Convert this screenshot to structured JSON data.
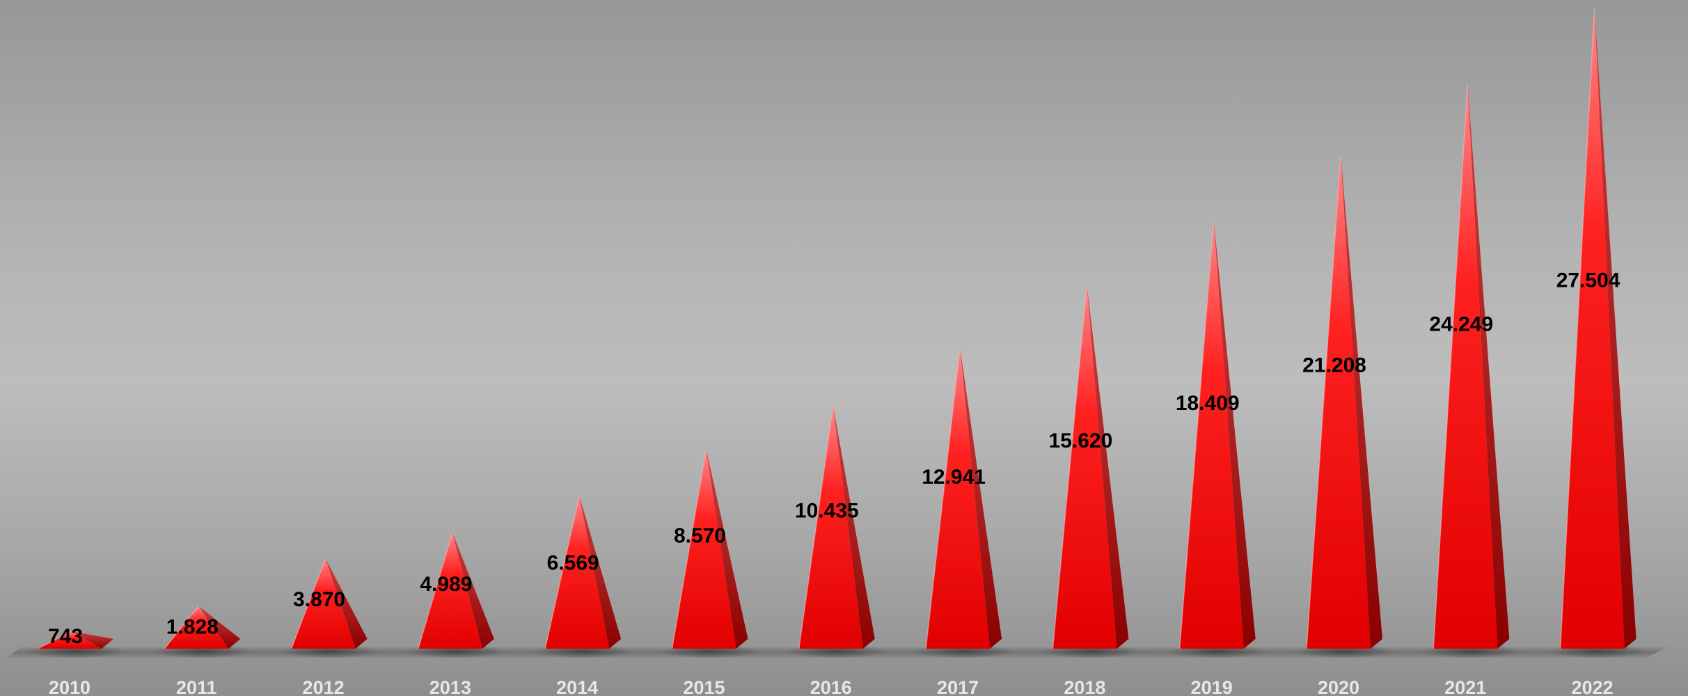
{
  "chart_data": {
    "type": "bar",
    "mark_shape": "3d-pyramid",
    "categories": [
      "2010",
      "2011",
      "2012",
      "2013",
      "2014",
      "2015",
      "2016",
      "2017",
      "2018",
      "2019",
      "2020",
      "2021",
      "2022"
    ],
    "values": [
      743,
      1828,
      3870,
      4989,
      6569,
      8570,
      10435,
      12941,
      15620,
      18409,
      21208,
      24249,
      27504
    ],
    "data_labels": [
      "743",
      "1.828",
      "3.870",
      "4.989",
      "6.569",
      "8.570",
      "10.435",
      "12.941",
      "15.620",
      "18.409",
      "21.208",
      "24.249",
      "27.504"
    ],
    "title": "",
    "xlabel": "",
    "ylabel": "",
    "ylim": [
      0,
      27504
    ],
    "grid": false,
    "legend": "none",
    "colors": {
      "bar": "#ff0000",
      "bar_light": "#ff8080",
      "bar_dark": "#a00000",
      "background": "#b8b8b8",
      "tick_label": "#e8e8e8",
      "data_label": "#000000"
    }
  }
}
